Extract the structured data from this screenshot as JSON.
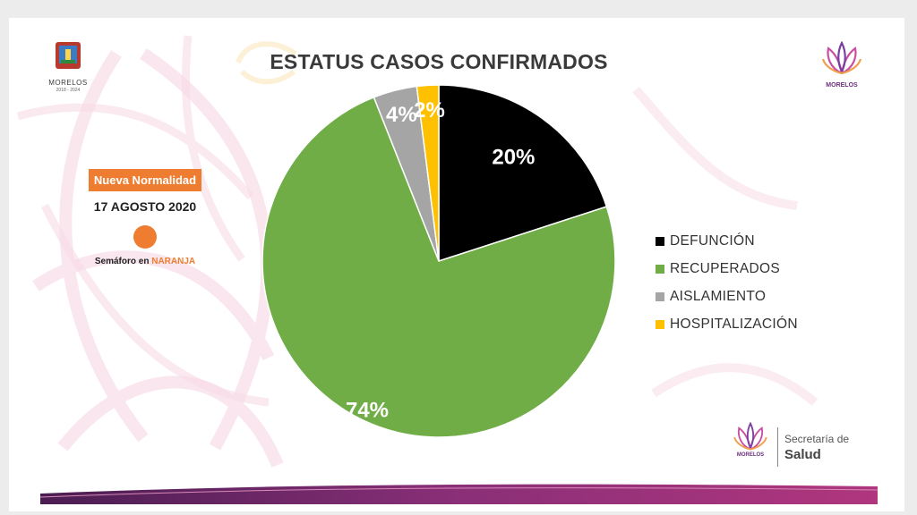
{
  "logos": {
    "left_caption": "MORELOS",
    "left_years": "2018 - 2024",
    "right_caption": "MORELOS",
    "brand_caption": "MORELOS",
    "brand_line1": "Secretaría de",
    "brand_line2": "Salud"
  },
  "info": {
    "badge": "Nueva Normalidad",
    "date": "17 AGOSTO 2020",
    "semaforo_prefix": "Semáforo en ",
    "semaforo_color_word": "NARANJA"
  },
  "colors": {
    "accent_orange": "#ef7d31",
    "defuncion": "#000000",
    "recuperados": "#70ad47",
    "aislamiento": "#a5a5a5",
    "hospitalizacion": "#ffc000"
  },
  "chart_data": {
    "type": "pie",
    "title": "ESTATUS CASOS CONFIRMADOS",
    "legend_position": "right",
    "slices": [
      {
        "label": "DEFUNCIÓN",
        "value": 20,
        "display": "20%",
        "color": "#000000",
        "label_color": "#ffffff"
      },
      {
        "label": "RECUPERADOS",
        "value": 74,
        "display": "74%",
        "color": "#70ad47",
        "label_color": "#ffffff"
      },
      {
        "label": "AISLAMIENTO",
        "value": 4,
        "display": "4%",
        "color": "#a5a5a5",
        "label_color": "#ffffff"
      },
      {
        "label": "HOSPITALIZACIÓN",
        "value": 2,
        "display": "2%",
        "color": "#ffc000",
        "label_color": "#ffffff"
      }
    ]
  }
}
